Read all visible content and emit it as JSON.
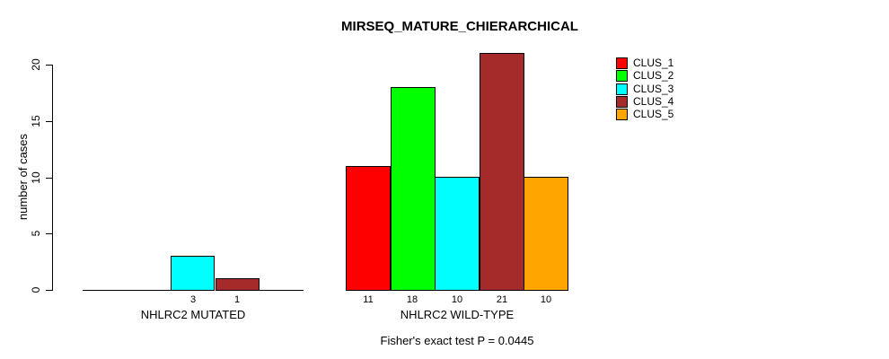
{
  "title": "MIRSEQ_MATURE_CHIERARCHICAL",
  "subtitle": "Fisher's exact test P = 0.0445",
  "chart_data": {
    "type": "bar",
    "title": "MIRSEQ_MATURE_CHIERARCHICAL",
    "xlabel": "",
    "ylabel": "number of cases",
    "ylim": [
      0,
      21
    ],
    "yticks": [
      0,
      5,
      10,
      15,
      20
    ],
    "grid": false,
    "legend_position": "top-right",
    "categories": [
      "NHLRC2 MUTATED",
      "NHLRC2 WILD-TYPE"
    ],
    "series": [
      {
        "name": "CLUS_1",
        "color": "#ff0000",
        "values": [
          0,
          11
        ]
      },
      {
        "name": "CLUS_2",
        "color": "#00ff00",
        "values": [
          0,
          18
        ]
      },
      {
        "name": "CLUS_3",
        "color": "#00ffff",
        "values": [
          3,
          10
        ]
      },
      {
        "name": "CLUS_4",
        "color": "#a52a2a",
        "values": [
          1,
          21
        ]
      },
      {
        "name": "CLUS_5",
        "color": "#ffa500",
        "values": [
          0,
          10
        ]
      }
    ],
    "bar_value_labels": [
      [
        "3",
        "1"
      ],
      [
        "11",
        "18",
        "10",
        "21",
        "10"
      ]
    ],
    "annotation": "Fisher's exact test P = 0.0445"
  }
}
